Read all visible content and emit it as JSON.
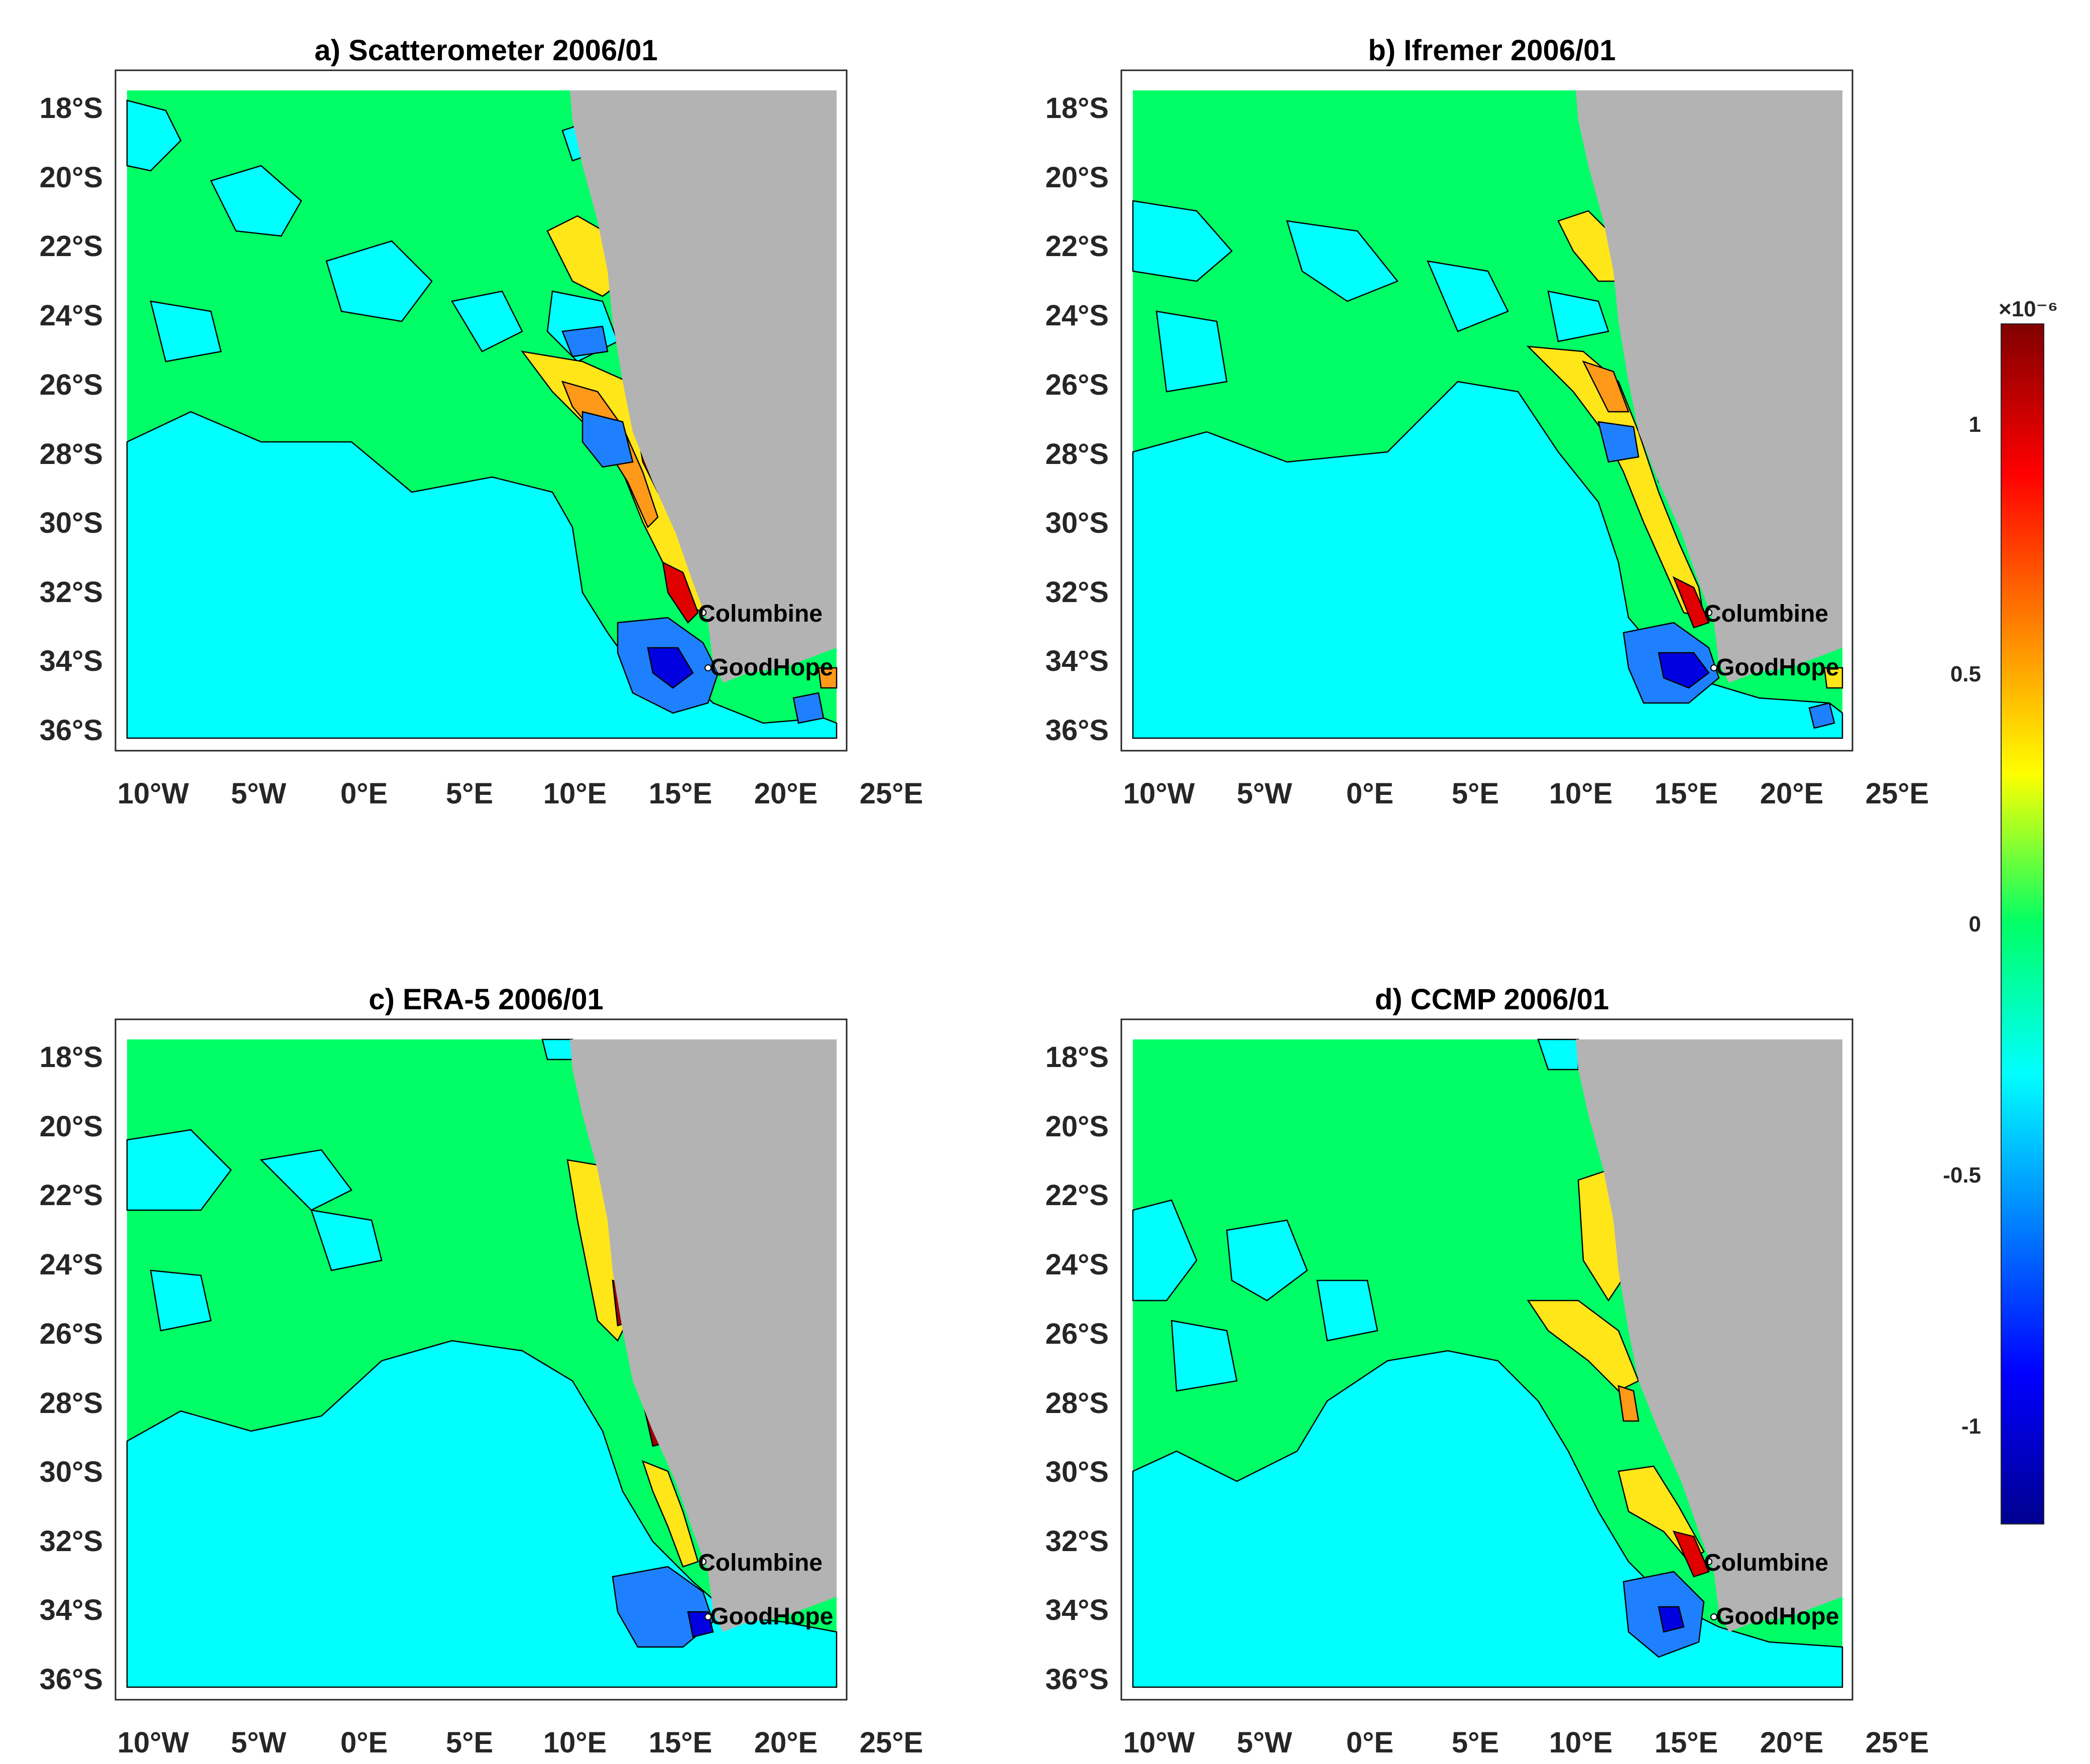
{
  "figure": {
    "panels": [
      {
        "id": "a",
        "title": "a) Scatterometer 2006/01"
      },
      {
        "id": "b",
        "title": "b) Ifremer 2006/01"
      },
      {
        "id": "c",
        "title": "c) ERA-5 2006/01"
      },
      {
        "id": "d",
        "title": "d) CCMP 2006/01"
      }
    ],
    "y_ticks": [
      "18°S",
      "20°S",
      "22°S",
      "24°S",
      "26°S",
      "28°S",
      "30°S",
      "32°S",
      "34°S",
      "36°S"
    ],
    "x_ticks": [
      "10°W",
      "5°W",
      "0°E",
      "5°E",
      "10°E",
      "15°E",
      "20°E",
      "25°E"
    ],
    "locations": [
      {
        "name": "Columbine",
        "lon": 17.4,
        "lat": -32.8
      },
      {
        "name": "GoodHope",
        "lon": 18.0,
        "lat": -34.4
      }
    ],
    "colorbar": {
      "exponent_label": "×10⁻⁶",
      "ticks": [
        "1",
        "0.5",
        "0",
        "-0.5",
        "-1"
      ],
      "tick_values": [
        1,
        0.5,
        0,
        -0.5,
        -1
      ],
      "range": [
        -1.2,
        1.2
      ],
      "colormap": "jet"
    },
    "colors": {
      "land": "#b3b3b3",
      "green_level": "#00ff66",
      "cyan_level": "#00ffff",
      "yellow_level": "#ffe619",
      "orange_level": "#ff9919",
      "red_level": "#e00000",
      "darkred_level": "#9a0000",
      "blue_level": "#1f80ff",
      "darkblue_level": "#0000e0"
    }
  },
  "chart_data": {
    "type": "contour map",
    "x_range_lon": [
      -11,
      25
    ],
    "y_range_lat": [
      -37,
      -17
    ],
    "data_extent_lon": [
      -10.5,
      23.5
    ],
    "data_extent_lat": [
      -36.5,
      -17.5
    ]
  }
}
